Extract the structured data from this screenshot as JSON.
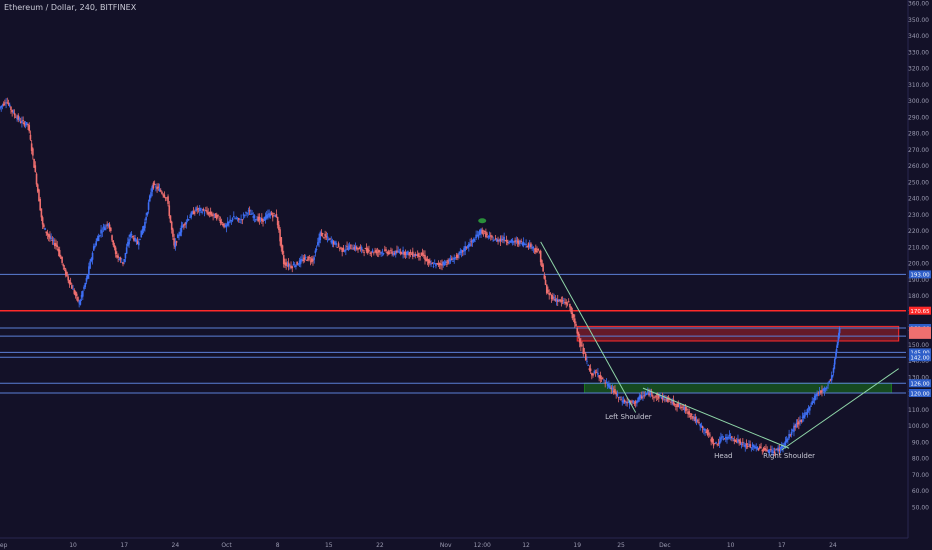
{
  "header": {
    "title": "Ethereum / Dollar, 240, BITFINEX"
  },
  "colors": {
    "background": "#131128",
    "up_candle": "#3e6ff5",
    "down_candle": "#ef6f6f",
    "support_line": "#5b7fd6",
    "resistance_line": "#ff2a2a",
    "red_zone": "#ff2a2a",
    "green_zone": "#1a7a1a",
    "trendline": "#8fd6a8",
    "text": "#c9c9d6"
  },
  "chart_data": {
    "type": "candlestick",
    "title": "Ethereum / Dollar, 240, BITFINEX",
    "ylim": [
      40,
      360
    ],
    "y_ticks": [
      "360.00",
      "350.00",
      "340.00",
      "330.00",
      "320.00",
      "310.00",
      "300.00",
      "290.00",
      "280.00",
      "270.00",
      "260.00",
      "250.00",
      "240.00",
      "230.00",
      "220.00",
      "210.00",
      "200.00",
      "190.00",
      "180.00",
      "170.00",
      "160.00",
      "150.00",
      "140.00",
      "130.00",
      "120.00",
      "110.00",
      "100.00",
      "90.00",
      "80.00",
      "70.00",
      "60.00",
      "50.00"
    ],
    "x_ticks": [
      {
        "label": "ep",
        "day": 0.5
      },
      {
        "label": "10",
        "day": 10
      },
      {
        "label": "17",
        "day": 17
      },
      {
        "label": "24",
        "day": 24
      },
      {
        "label": "Oct",
        "day": 31
      },
      {
        "label": "8",
        "day": 38
      },
      {
        "label": "15",
        "day": 45
      },
      {
        "label": "22",
        "day": 52
      },
      {
        "label": "Nov",
        "day": 61
      },
      {
        "label": "12:00",
        "day": 66
      },
      {
        "label": "12",
        "day": 72
      },
      {
        "label": "19",
        "day": 79
      },
      {
        "label": "25",
        "day": 85
      },
      {
        "label": "Dec",
        "day": 91
      },
      {
        "label": "10",
        "day": 100
      },
      {
        "label": "17",
        "day": 107
      },
      {
        "label": "24",
        "day": 114
      }
    ],
    "price_path": [
      {
        "day": 0,
        "price": 295
      },
      {
        "day": 1,
        "price": 300
      },
      {
        "day": 2,
        "price": 292
      },
      {
        "day": 3,
        "price": 287
      },
      {
        "day": 4,
        "price": 285
      },
      {
        "day": 5,
        "price": 255
      },
      {
        "day": 6,
        "price": 223
      },
      {
        "day": 7,
        "price": 215
      },
      {
        "day": 8,
        "price": 210
      },
      {
        "day": 9,
        "price": 195
      },
      {
        "day": 10,
        "price": 185
      },
      {
        "day": 11,
        "price": 175
      },
      {
        "day": 12,
        "price": 190
      },
      {
        "day": 13,
        "price": 210
      },
      {
        "day": 14,
        "price": 220
      },
      {
        "day": 15,
        "price": 225
      },
      {
        "day": 16,
        "price": 205
      },
      {
        "day": 17,
        "price": 200
      },
      {
        "day": 18,
        "price": 218
      },
      {
        "day": 19,
        "price": 212
      },
      {
        "day": 20,
        "price": 225
      },
      {
        "day": 21,
        "price": 248
      },
      {
        "day": 22,
        "price": 245
      },
      {
        "day": 23,
        "price": 240
      },
      {
        "day": 24,
        "price": 210
      },
      {
        "day": 25,
        "price": 222
      },
      {
        "day": 26,
        "price": 228
      },
      {
        "day": 27,
        "price": 233
      },
      {
        "day": 28,
        "price": 232
      },
      {
        "day": 29,
        "price": 230
      },
      {
        "day": 30,
        "price": 228
      },
      {
        "day": 31,
        "price": 222
      },
      {
        "day": 32,
        "price": 228
      },
      {
        "day": 33,
        "price": 226
      },
      {
        "day": 34,
        "price": 232
      },
      {
        "day": 35,
        "price": 228
      },
      {
        "day": 36,
        "price": 226
      },
      {
        "day": 37,
        "price": 230
      },
      {
        "day": 38,
        "price": 229
      },
      {
        "day": 39,
        "price": 200
      },
      {
        "day": 40,
        "price": 198
      },
      {
        "day": 41,
        "price": 200
      },
      {
        "day": 42,
        "price": 203
      },
      {
        "day": 43,
        "price": 202
      },
      {
        "day": 44,
        "price": 218
      },
      {
        "day": 45,
        "price": 215
      },
      {
        "day": 46,
        "price": 212
      },
      {
        "day": 47,
        "price": 208
      },
      {
        "day": 48,
        "price": 210
      },
      {
        "day": 49,
        "price": 209
      },
      {
        "day": 50,
        "price": 208
      },
      {
        "day": 51,
        "price": 207
      },
      {
        "day": 52,
        "price": 207
      },
      {
        "day": 53,
        "price": 207
      },
      {
        "day": 54,
        "price": 206
      },
      {
        "day": 55,
        "price": 207
      },
      {
        "day": 56,
        "price": 206
      },
      {
        "day": 57,
        "price": 205
      },
      {
        "day": 58,
        "price": 205
      },
      {
        "day": 59,
        "price": 199
      },
      {
        "day": 60,
        "price": 199
      },
      {
        "day": 61,
        "price": 200
      },
      {
        "day": 62,
        "price": 202
      },
      {
        "day": 63,
        "price": 205
      },
      {
        "day": 64,
        "price": 210
      },
      {
        "day": 65,
        "price": 214
      },
      {
        "day": 66,
        "price": 220
      },
      {
        "day": 67,
        "price": 216
      },
      {
        "day": 68,
        "price": 214
      },
      {
        "day": 69,
        "price": 215
      },
      {
        "day": 70,
        "price": 213
      },
      {
        "day": 71,
        "price": 213
      },
      {
        "day": 72,
        "price": 212
      },
      {
        "day": 73,
        "price": 210
      },
      {
        "day": 74,
        "price": 206
      },
      {
        "day": 75,
        "price": 182
      },
      {
        "day": 76,
        "price": 178
      },
      {
        "day": 77,
        "price": 176
      },
      {
        "day": 78,
        "price": 175
      },
      {
        "day": 79,
        "price": 160
      },
      {
        "day": 80,
        "price": 145
      },
      {
        "day": 81,
        "price": 132
      },
      {
        "day": 82,
        "price": 132
      },
      {
        "day": 83,
        "price": 126
      },
      {
        "day": 84,
        "price": 122
      },
      {
        "day": 85,
        "price": 116
      },
      {
        "day": 86,
        "price": 114
      },
      {
        "day": 87,
        "price": 114
      },
      {
        "day": 88,
        "price": 118
      },
      {
        "day": 89,
        "price": 120
      },
      {
        "day": 90,
        "price": 118
      },
      {
        "day": 91,
        "price": 117
      },
      {
        "day": 92,
        "price": 115
      },
      {
        "day": 93,
        "price": 112
      },
      {
        "day": 94,
        "price": 110
      },
      {
        "day": 95,
        "price": 105
      },
      {
        "day": 96,
        "price": 100
      },
      {
        "day": 97,
        "price": 95
      },
      {
        "day": 98,
        "price": 88
      },
      {
        "day": 99,
        "price": 92
      },
      {
        "day": 100,
        "price": 93
      },
      {
        "day": 101,
        "price": 91
      },
      {
        "day": 102,
        "price": 88
      },
      {
        "day": 103,
        "price": 87
      },
      {
        "day": 104,
        "price": 86
      },
      {
        "day": 105,
        "price": 85
      },
      {
        "day": 106,
        "price": 84
      },
      {
        "day": 107,
        "price": 86
      },
      {
        "day": 108,
        "price": 92
      },
      {
        "day": 109,
        "price": 100
      },
      {
        "day": 110,
        "price": 104
      },
      {
        "day": 111,
        "price": 112
      },
      {
        "day": 112,
        "price": 120
      },
      {
        "day": 113,
        "price": 122
      },
      {
        "day": 114,
        "price": 130
      },
      {
        "day": 114.5,
        "price": 145
      },
      {
        "day": 115,
        "price": 160
      }
    ],
    "horizontal_levels": [
      {
        "price": 193.0,
        "label": "193.00",
        "color": "#5b7fd6"
      },
      {
        "price": 170.65,
        "label": "170.65",
        "color": "#ff2a2a"
      },
      {
        "price": 160.0,
        "label": "160.00",
        "color": "#5b7fd6"
      },
      {
        "price": 155.0,
        "label": "",
        "color": "#5b7fd6"
      },
      {
        "price": 145.0,
        "label": "145.00",
        "color": "#5b7fd6"
      },
      {
        "price": 142.0,
        "label": "142.00",
        "color": "#5b7fd6"
      },
      {
        "price": 126.0,
        "label": "126.00",
        "color": "#5b7fd6"
      },
      {
        "price": 120.0,
        "label": "120.00",
        "color": "#5b7fd6"
      }
    ],
    "zones": [
      {
        "label": "resistance-zone",
        "from_day": 79,
        "to_day": 123,
        "low": 152,
        "high": 161,
        "color": "#ff2a2a"
      },
      {
        "label": "support-zone",
        "from_day": 80,
        "to_day": 122,
        "low": 120,
        "high": 126,
        "color": "#1a7a1a"
      }
    ],
    "trendlines": [
      {
        "from": {
          "day": 74,
          "price": 213
        },
        "to": {
          "day": 87,
          "price": 108
        }
      },
      {
        "from": {
          "day": 88,
          "price": 123
        },
        "to": {
          "day": 108,
          "price": 86
        }
      },
      {
        "from": {
          "day": 107,
          "price": 85
        },
        "to": {
          "day": 123,
          "price": 135
        }
      }
    ],
    "annotations": [
      {
        "text": "Left Shoulder",
        "day": 86,
        "price": 104
      },
      {
        "text": "Head",
        "day": 99,
        "price": 80
      },
      {
        "text": "Right Shoulder",
        "day": 108,
        "price": 80
      }
    ],
    "price_tags": [
      {
        "text": "155.00"
      },
      {
        "text": "142.00"
      },
      {
        "text": "126.00"
      },
      {
        "text": "120.00"
      }
    ],
    "marker": {
      "day": 66,
      "price": 226,
      "color": "#2a8f3a"
    }
  }
}
